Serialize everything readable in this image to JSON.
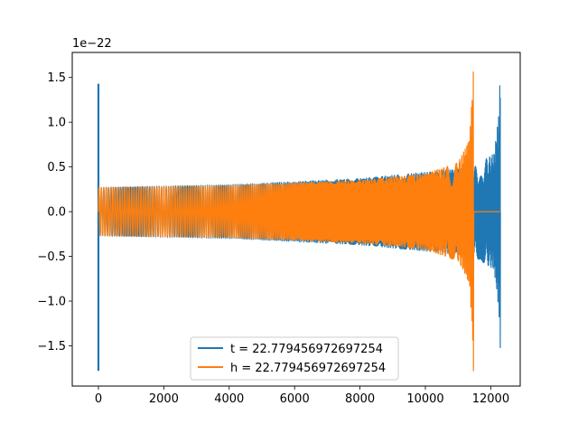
{
  "chart_data": {
    "type": "line",
    "offset_label": "1e−22",
    "x_ticks": [
      0,
      2000,
      4000,
      6000,
      8000,
      10000,
      12000
    ],
    "x_tick_labels": [
      "0",
      "2000",
      "4000",
      "6000",
      "8000",
      "10000",
      "12000"
    ],
    "y_ticks": [
      -1.5,
      -1.0,
      -0.5,
      0.0,
      0.5,
      1.0,
      1.5
    ],
    "y_tick_labels": [
      "−1.5",
      "−1.0",
      "−0.5",
      "0.0",
      "0.5",
      "1.0",
      "1.5"
    ],
    "xlim": [
      -800,
      12900
    ],
    "ylim": [
      -1.95,
      1.78
    ],
    "grid": false,
    "legend_location": "lower center",
    "series": [
      {
        "name": "t = 22.779456972697254",
        "color": "#1f77b4",
        "description": "chirp waveform with merger near x=12290; spike at x=0",
        "envelope": [
          {
            "x": 0,
            "y": 0.27
          },
          {
            "x": 4000,
            "y": 0.3
          },
          {
            "x": 8000,
            "y": 0.37
          },
          {
            "x": 10000,
            "y": 0.44
          },
          {
            "x": 11500,
            "y": 0.5
          },
          {
            "x": 12100,
            "y": 0.65
          },
          {
            "x": 12250,
            "y": 1.1
          },
          {
            "x": 12290,
            "y": 1.6
          }
        ],
        "spike": {
          "x": 0,
          "ymin": -1.78,
          "ymax": 1.43
        }
      },
      {
        "name": "h = 22.779456972697254",
        "color": "#ff7f0e",
        "description": "chirp waveform with merger near x=11470, flat zero afterwards",
        "envelope": [
          {
            "x": 0,
            "y": 0.27
          },
          {
            "x": 4000,
            "y": 0.29
          },
          {
            "x": 8000,
            "y": 0.35
          },
          {
            "x": 10000,
            "y": 0.42
          },
          {
            "x": 11000,
            "y": 0.55
          },
          {
            "x": 11350,
            "y": 0.8
          },
          {
            "x": 11470,
            "y": 1.6
          }
        ],
        "merger_min": -1.78,
        "end_flat": {
          "x0": 11480,
          "x1": 12290,
          "y": 0.0
        }
      }
    ]
  }
}
